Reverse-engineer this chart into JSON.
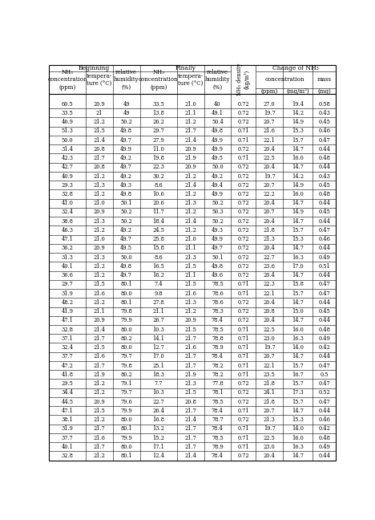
{
  "rows": [
    [
      60.5,
      20.9,
      49,
      33.5,
      21.0,
      40,
      0.72,
      27.0,
      19.4,
      0.58
    ],
    [
      33.5,
      21,
      49,
      13.8,
      21.1,
      49.1,
      0.72,
      19.7,
      14.2,
      0.43
    ],
    [
      46.9,
      21.2,
      50.2,
      26.2,
      21.2,
      50.4,
      0.72,
      20.7,
      14.9,
      0.45
    ],
    [
      51.3,
      21.5,
      49.8,
      29.7,
      21.7,
      49.8,
      0.71,
      21.6,
      15.3,
      0.46
    ],
    [
      50.0,
      21.4,
      49.7,
      27.9,
      21.4,
      49.9,
      0.71,
      22.1,
      15.7,
      0.47
    ],
    [
      31.4,
      20.8,
      49.9,
      11.0,
      20.9,
      49.9,
      0.72,
      20.4,
      14.7,
      0.44
    ],
    [
      42.3,
      21.7,
      49.2,
      19.8,
      21.9,
      49.5,
      0.71,
      22.5,
      16.0,
      0.48
    ],
    [
      42.7,
      20.8,
      49.7,
      22.3,
      20.9,
      50.0,
      0.72,
      20.4,
      14.7,
      0.44
    ],
    [
      40.9,
      21.2,
      49.2,
      30.2,
      21.2,
      49.2,
      0.72,
      19.7,
      14.2,
      0.43
    ],
    [
      29.3,
      21.3,
      49.3,
      8.6,
      21.4,
      49.4,
      0.72,
      20.7,
      14.9,
      0.45
    ],
    [
      32.8,
      21.2,
      49.8,
      10.6,
      21.2,
      49.9,
      0.72,
      22.2,
      16.0,
      0.48
    ],
    [
      41.0,
      21.0,
      50.1,
      20.6,
      21.3,
      50.2,
      0.72,
      20.4,
      14.7,
      0.44
    ],
    [
      32.4,
      20.9,
      50.2,
      11.7,
      21.2,
      50.3,
      0.72,
      20.7,
      14.9,
      0.45
    ],
    [
      38.8,
      21.3,
      50.2,
      18.4,
      21.4,
      50.2,
      0.72,
      20.4,
      14.7,
      0.44
    ],
    [
      46.3,
      21.2,
      49.2,
      24.5,
      21.2,
      49.3,
      0.72,
      21.8,
      15.7,
      0.47
    ],
    [
      47.1,
      21.0,
      49.7,
      25.8,
      21.0,
      49.9,
      0.72,
      21.3,
      15.3,
      0.46
    ],
    [
      36.2,
      20.9,
      49.5,
      15.8,
      21.1,
      49.7,
      0.72,
      20.4,
      14.7,
      0.44
    ],
    [
      31.3,
      21.3,
      50.0,
      8.6,
      21.3,
      50.1,
      0.72,
      22.7,
      16.3,
      0.49
    ],
    [
      40.1,
      21.2,
      49.8,
      16.5,
      21.5,
      49.8,
      0.72,
      23.6,
      17.0,
      0.51
    ],
    [
      36.6,
      21.2,
      49.7,
      16.2,
      21.1,
      49.6,
      0.72,
      20.4,
      14.7,
      0.44
    ],
    [
      29.7,
      21.5,
      80.1,
      7.4,
      21.5,
      78.5,
      0.71,
      22.3,
      15.8,
      0.47
    ],
    [
      31.9,
      21.6,
      80.0,
      9.8,
      21.6,
      78.6,
      0.71,
      22.1,
      15.7,
      0.47
    ],
    [
      48.2,
      21.2,
      80.1,
      27.8,
      21.3,
      78.6,
      0.72,
      20.4,
      14.7,
      0.44
    ],
    [
      41.9,
      21.1,
      79.8,
      21.1,
      21.2,
      78.3,
      0.72,
      20.8,
      15.0,
      0.45
    ],
    [
      47.1,
      20.9,
      79.9,
      26.7,
      20.9,
      78.4,
      0.72,
      20.4,
      14.7,
      0.44
    ],
    [
      32.8,
      21.4,
      80.0,
      10.3,
      21.5,
      78.5,
      0.71,
      22.5,
      16.0,
      0.48
    ],
    [
      37.1,
      21.7,
      80.2,
      14.1,
      21.7,
      78.8,
      0.71,
      23.0,
      16.3,
      0.49
    ],
    [
      32.4,
      21.5,
      80.0,
      12.7,
      21.6,
      78.9,
      0.71,
      19.7,
      14.0,
      0.42
    ],
    [
      37.7,
      21.6,
      79.7,
      17.0,
      21.7,
      78.4,
      0.71,
      20.7,
      14.7,
      0.44
    ],
    [
      47.2,
      21.7,
      79.8,
      25.1,
      21.7,
      78.2,
      0.71,
      22.1,
      15.7,
      0.47
    ],
    [
      41.8,
      21.9,
      80.2,
      18.3,
      21.9,
      78.2,
      0.71,
      23.5,
      16.7,
      0.5
    ],
    [
      29.5,
      21.2,
      79.1,
      7.7,
      21.3,
      77.8,
      0.72,
      21.8,
      15.7,
      0.47
    ],
    [
      34.4,
      21.2,
      79.7,
      10.3,
      21.5,
      78.1,
      0.72,
      24.1,
      17.3,
      0.52
    ],
    [
      44.5,
      20.9,
      79.6,
      22.7,
      20.8,
      78.5,
      0.72,
      21.8,
      15.7,
      0.47
    ],
    [
      47.1,
      21.5,
      79.9,
      26.4,
      21.7,
      78.4,
      0.71,
      20.7,
      14.7,
      0.44
    ],
    [
      38.1,
      21.2,
      80.0,
      16.8,
      21.4,
      78.7,
      0.72,
      21.3,
      15.3,
      0.46
    ],
    [
      31.9,
      21.7,
      80.1,
      13.2,
      21.7,
      78.4,
      0.71,
      19.7,
      14.0,
      0.42
    ],
    [
      37.7,
      21.6,
      79.9,
      15.2,
      21.7,
      78.5,
      0.71,
      22.5,
      16.0,
      0.48
    ],
    [
      40.1,
      21.7,
      80.0,
      17.1,
      21.7,
      78.9,
      0.71,
      23.0,
      16.3,
      0.49
    ],
    [
      32.8,
      21.2,
      80.1,
      12.4,
      21.4,
      78.4,
      0.72,
      20.4,
      14.7,
      0.44
    ]
  ],
  "col_widths_rel": [
    5.2,
    3.8,
    3.8,
    5.2,
    3.8,
    3.8,
    3.5,
    3.8,
    4.2,
    3.2
  ],
  "fs_header": 5.5,
  "fs_subheader": 5.0,
  "fs_data": 4.8,
  "lw_outer": 0.8,
  "lw_inner": 0.4,
  "lw_thick": 0.8
}
